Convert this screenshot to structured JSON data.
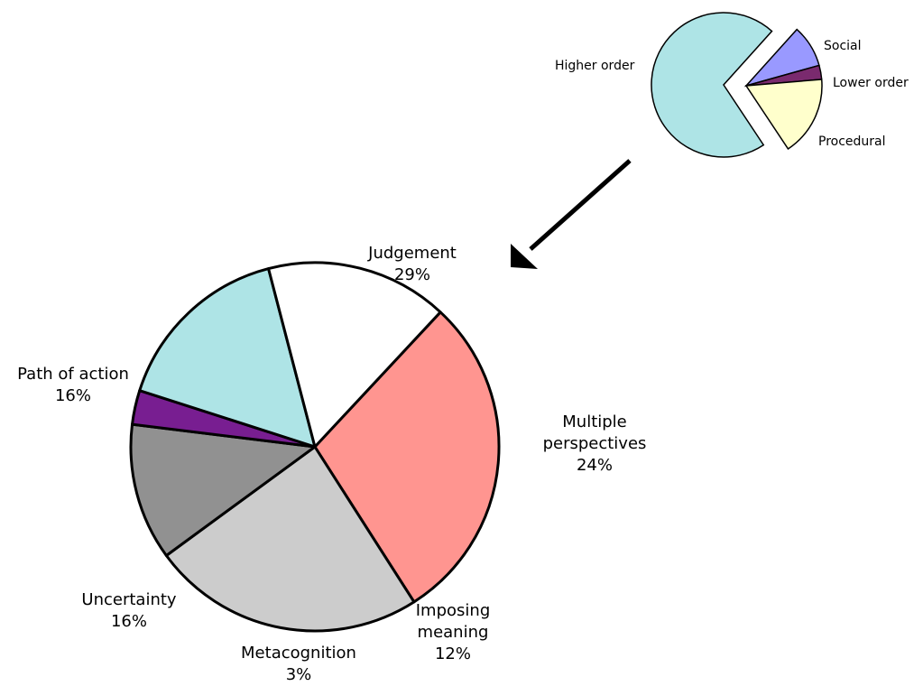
{
  "chart_data": [
    {
      "type": "pie",
      "labels": [
        "Higher order",
        "Social",
        "Lower order",
        "Procedural"
      ],
      "values": [
        71,
        9,
        3,
        17
      ],
      "colors": [
        "#aee4e6",
        "#9999ff",
        "#7a2a6e",
        "#ffffcc"
      ],
      "exploded": "Social, Lower order, Procedural"
    },
    {
      "type": "pie",
      "labels": [
        "Judgement",
        "Multiple perspectives",
        "Imposing meaning",
        "Metacognition",
        "Uncertainty",
        "Path of action"
      ],
      "label_lines": [
        [
          "Judgement"
        ],
        [
          "Multiple",
          "perspectives"
        ],
        [
          "Imposing",
          "meaning"
        ],
        [
          "Metacognition"
        ],
        [
          "Uncertainty"
        ],
        [
          "Path of action"
        ]
      ],
      "values": [
        29,
        24,
        12,
        3,
        16,
        16
      ],
      "percent_labels": [
        "29%",
        "24%",
        "12%",
        "3%",
        "16%",
        "16%"
      ],
      "colors": [
        "#ff9590",
        "#cccccc",
        "#919191",
        "#781e91",
        "#aee4e6",
        "#ffffff"
      ]
    }
  ]
}
